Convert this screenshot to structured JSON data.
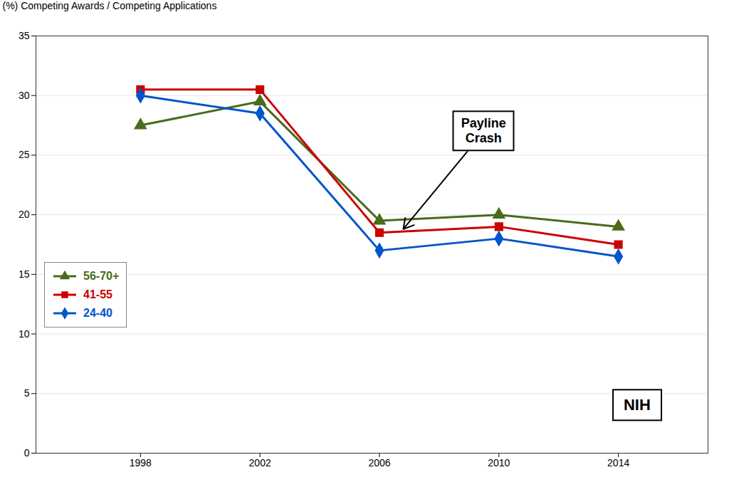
{
  "chart_data": {
    "type": "line",
    "ylabel": "(%) Competing Awards / Competing Applications",
    "x": [
      1998,
      2002,
      2006,
      2010,
      2014
    ],
    "series": [
      {
        "name": "56-70+",
        "color": "#4a6b1a",
        "marker": "triangle",
        "values": [
          27.5,
          29.5,
          19.5,
          20.0,
          19.0
        ]
      },
      {
        "name": "41-55",
        "color": "#cc0000",
        "marker": "square",
        "values": [
          30.5,
          30.5,
          18.5,
          19.0,
          17.5
        ]
      },
      {
        "name": "24-40",
        "color": "#0055cc",
        "marker": "diamond",
        "values": [
          30.0,
          28.5,
          17.0,
          18.0,
          16.5
        ]
      }
    ],
    "xlim": [
      1994.5,
      2017.0
    ],
    "xticks": [
      1998,
      2002,
      2006,
      2010,
      2014
    ],
    "ylim": [
      0,
      35
    ],
    "yticks": [
      0,
      5,
      10,
      15,
      20,
      25,
      30,
      35
    ],
    "grid": "y",
    "legend": "lower left",
    "annotations": [
      {
        "text": "Payline\nCrash",
        "x": 2006.8,
        "y": 18.8,
        "text_x": 2009.5,
        "text_y": 27.0
      },
      {
        "text": "NIH"
      }
    ]
  }
}
